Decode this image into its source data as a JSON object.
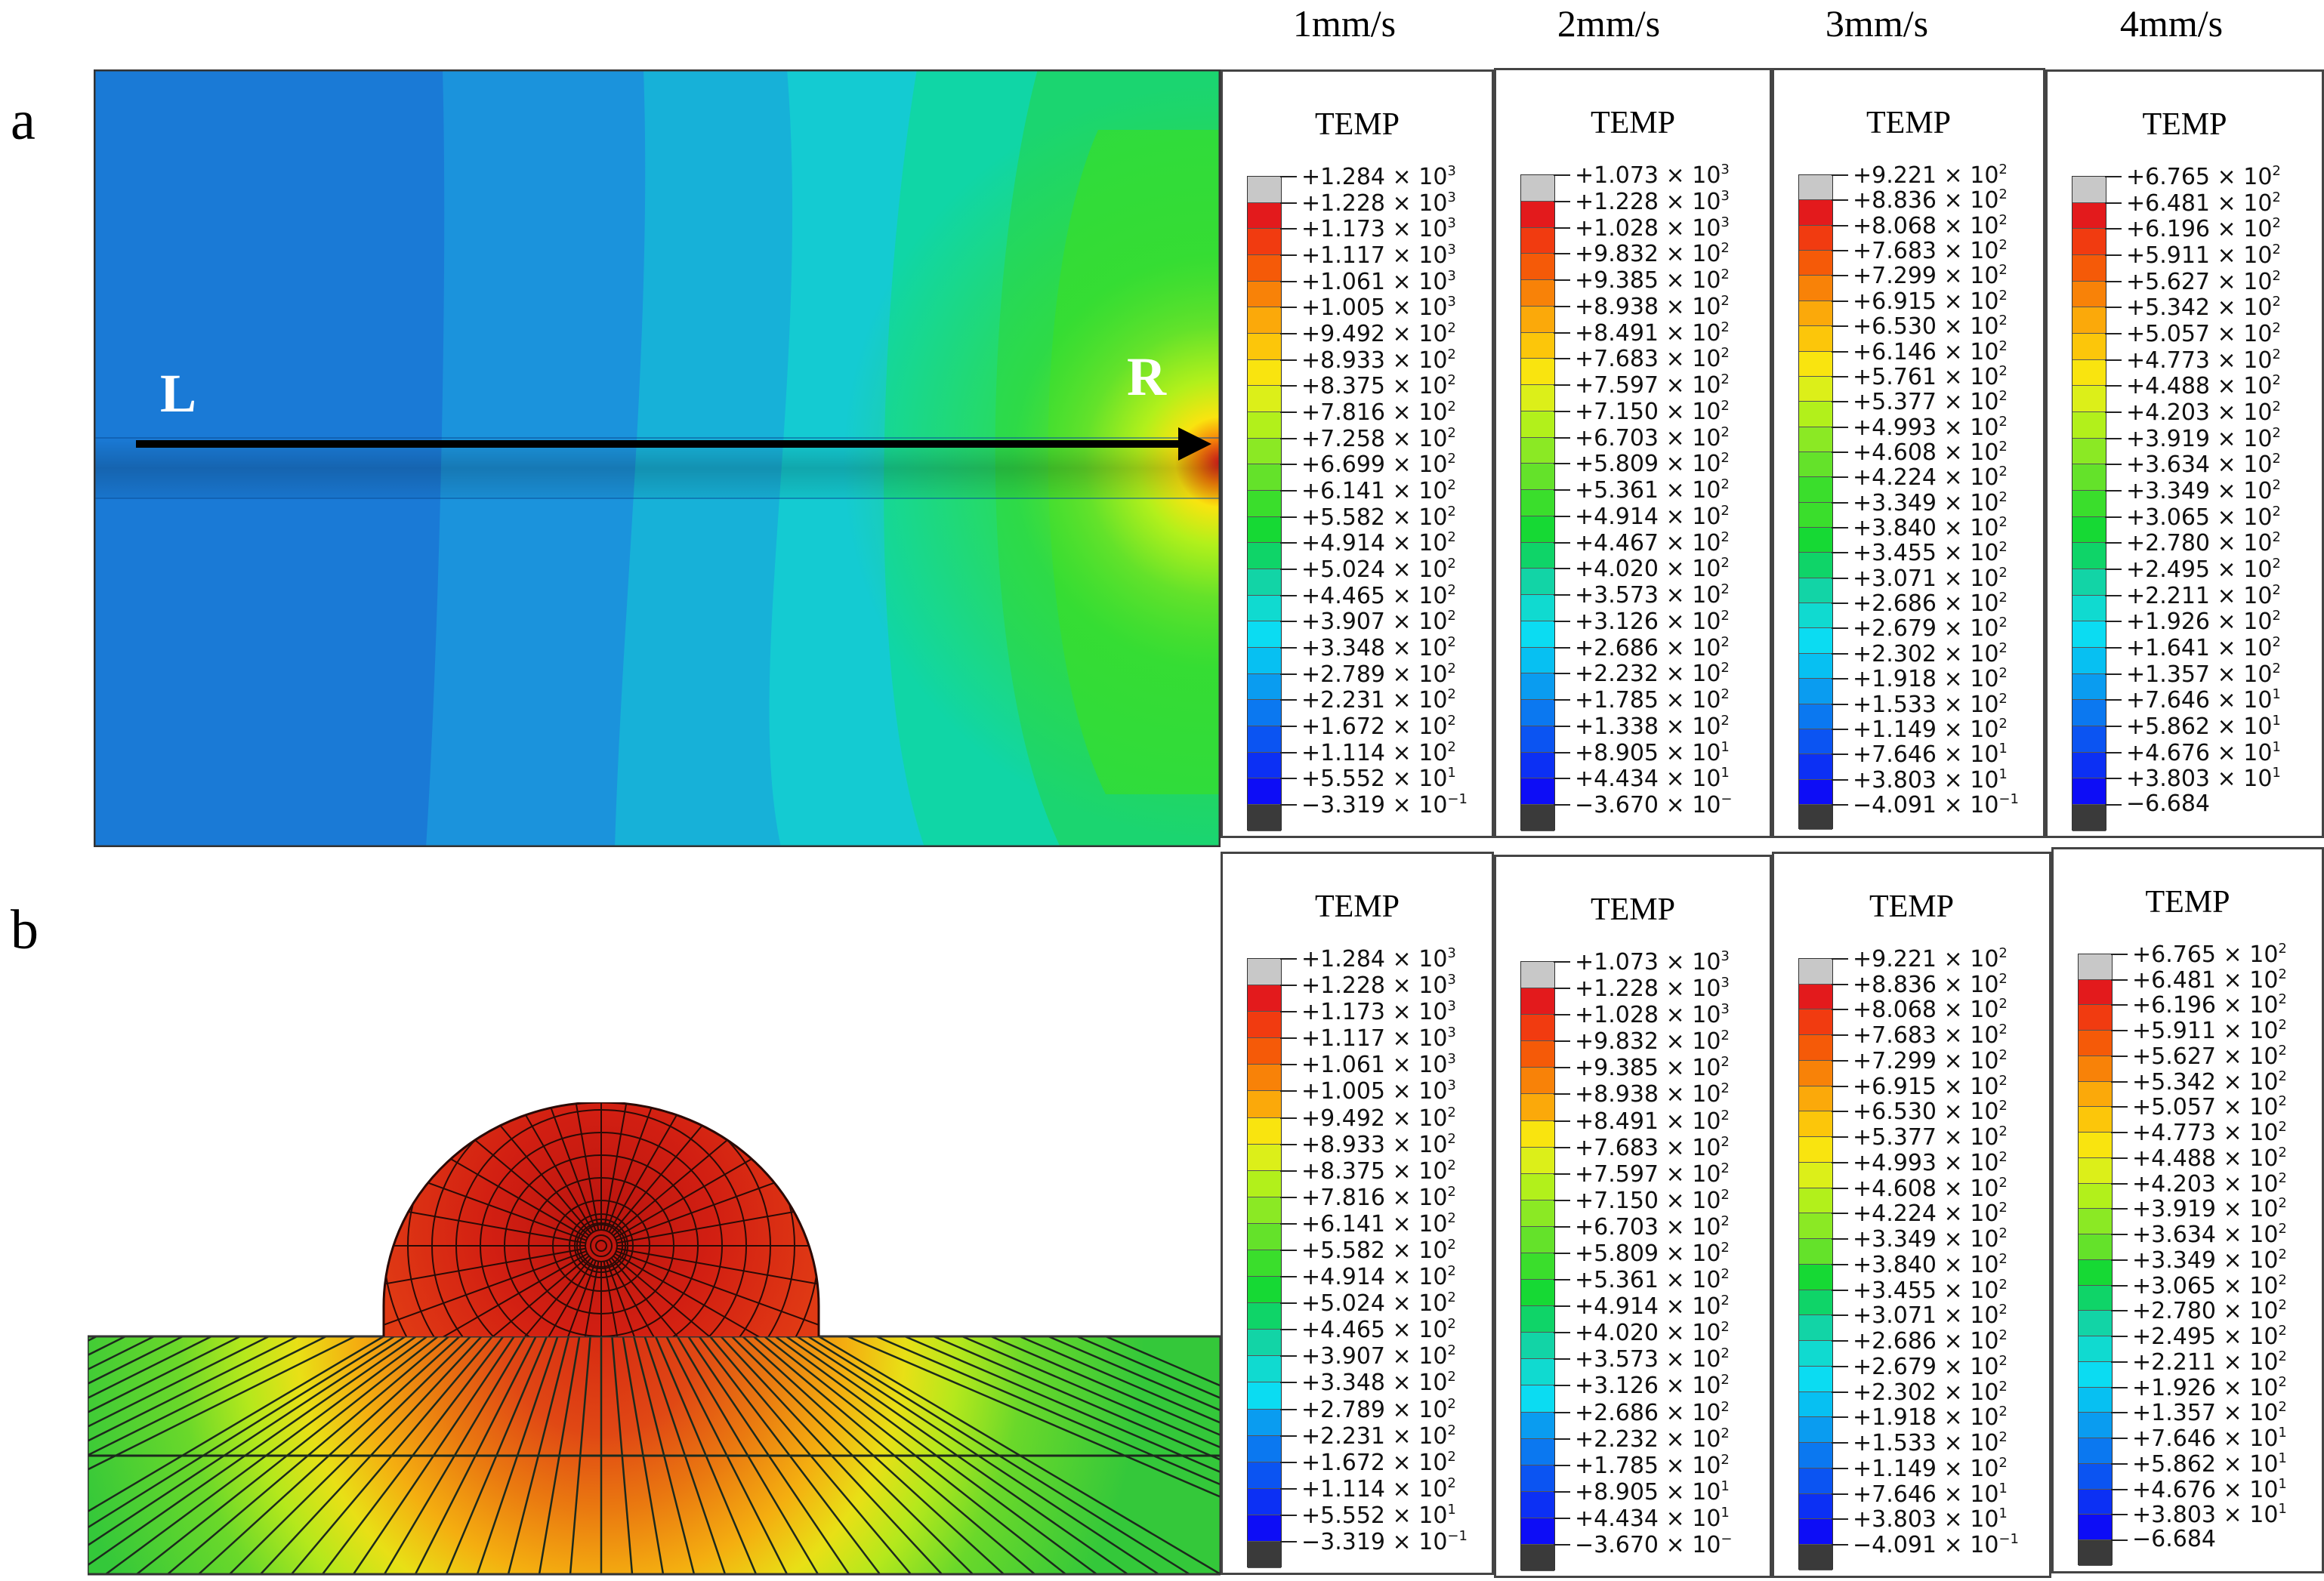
{
  "speeds": [
    "1mm/s",
    "2mm/s",
    "3mm/s",
    "4mm/s"
  ],
  "panels": {
    "a": "a",
    "b": "b"
  },
  "path_labels": {
    "start": "L",
    "end": "R"
  },
  "legend_title": "TEMP",
  "colorbar_colors": [
    "#c8c8c8",
    "#e31a1c",
    "#f13b10",
    "#f55a08",
    "#f88208",
    "#fba90a",
    "#fcc60a",
    "#f9e40f",
    "#dcef19",
    "#b2f01b",
    "#8be924",
    "#64e22a",
    "#3ade2c",
    "#16d934",
    "#0fd468",
    "#12d4a6",
    "#10dad0",
    "#0bdcf2",
    "#07c0f2",
    "#0a9cf0",
    "#0b78f0",
    "#0b54f2",
    "#0c30f4",
    "#0d0df6",
    "#3a3a3a"
  ],
  "legends": {
    "a": [
      [
        "+1.284 × 10",
        "3",
        "+1.228 × 10",
        "3",
        "+1.173 × 10",
        "3",
        "+1.117 × 10",
        "3",
        "+1.061 × 10",
        "3",
        "+1.005 × 10",
        "3",
        "+9.492 × 10",
        "2",
        "+8.933 × 10",
        "2",
        "+8.375 × 10",
        "2",
        "+7.816 × 10",
        "2",
        "+7.258 × 10",
        "2",
        "+6.699 × 10",
        "2",
        "+6.141 × 10",
        "2",
        "+5.582 × 10",
        "2",
        "+4.914 × 10",
        "2",
        "+5.024 × 10",
        "2",
        "+4.465 × 10",
        "2",
        "+3.907 × 10",
        "2",
        "+3.348 × 10",
        "2",
        "+2.789 × 10",
        "2",
        "+2.231 × 10",
        "2",
        "+1.672 × 10",
        "2",
        "+1.114 × 10",
        "2",
        "+5.552 × 10",
        "1",
        "−3.319 × 10",
        "−1"
      ],
      [
        "+1.073 × 10",
        "3",
        "+1.228 × 10",
        "3",
        "+1.028 × 10",
        "3",
        "+9.832 × 10",
        "2",
        "+9.385 × 10",
        "2",
        "+8.938 × 10",
        "2",
        "+8.491 × 10",
        "2",
        "+7.683 × 10",
        "2",
        "+7.597 × 10",
        "2",
        "+7.150 × 10",
        "2",
        "+6.703 × 10",
        "2",
        "+5.809 × 10",
        "2",
        "+5.361 × 10",
        "2",
        "+4.914 × 10",
        "2",
        "+4.467 × 10",
        "2",
        "+4.020 × 10",
        "2",
        "+3.573 × 10",
        "2",
        "+3.126 × 10",
        "2",
        "+2.686 × 10",
        "2",
        "+2.232 × 10",
        "2",
        "+1.785 × 10",
        "2",
        "+1.338 × 10",
        "2",
        "+8.905 × 10",
        "1",
        "+4.434 × 10",
        "1",
        "−3.670 × 10",
        "−"
      ],
      [
        "+9.221 × 10",
        "2",
        "+8.836 × 10",
        "2",
        "+8.068 × 10",
        "2",
        "+7.683 × 10",
        "2",
        "+7.299 × 10",
        "2",
        "+6.915 × 10",
        "2",
        "+6.530 × 10",
        "2",
        "+6.146 × 10",
        "2",
        "+5.761 × 10",
        "2",
        "+5.377 × 10",
        "2",
        "+4.993 × 10",
        "2",
        "+4.608 × 10",
        "2",
        "+4.224 × 10",
        "2",
        "+3.349 × 10",
        "2",
        "+3.840 × 10",
        "2",
        "+3.455 × 10",
        "2",
        "+3.071 × 10",
        "2",
        "+2.686 × 10",
        "2",
        "+2.679 × 10",
        "2",
        "+2.302 × 10",
        "2",
        "+1.918 × 10",
        "2",
        "+1.533 × 10",
        "2",
        "+1.149 × 10",
        "2",
        "+7.646 × 10",
        "1",
        "+3.803 × 10",
        "1",
        "−4.091 × 10",
        "−1"
      ],
      [
        "+6.765 × 10",
        "2",
        "+6.481 × 10",
        "2",
        "+6.196 × 10",
        "2",
        "+5.911 × 10",
        "2",
        "+5.627 × 10",
        "2",
        "+5.342 × 10",
        "2",
        "+5.057 × 10",
        "2",
        "+4.773 × 10",
        "2",
        "+4.488 × 10",
        "2",
        "+4.203 × 10",
        "2",
        "+3.919 × 10",
        "2",
        "+3.634 × 10",
        "2",
        "+3.349 × 10",
        "2",
        "+3.065 × 10",
        "2",
        "+2.780 × 10",
        "2",
        "+2.495 × 10",
        "2",
        "+2.211 × 10",
        "2",
        "+1.926 × 10",
        "2",
        "+1.641 × 10",
        "2",
        "+1.357 × 10",
        "2",
        "+7.646 × 10",
        "1",
        "+5.862 × 10",
        "1",
        "+4.676 × 10",
        "1",
        "+3.803 × 10",
        "1",
        "−6.684",
        ""
      ]
    ],
    "b": [
      [
        "+1.284 × 10",
        "3",
        "+1.228 × 10",
        "3",
        "+1.173 × 10",
        "3",
        "+1.117 × 10",
        "3",
        "+1.061 × 10",
        "3",
        "+1.005 × 10",
        "3",
        "+9.492 × 10",
        "2",
        "+8.933 × 10",
        "2",
        "+8.375 × 10",
        "2",
        "+7.816 × 10",
        "2",
        "+6.141 × 10",
        "2",
        "+5.582 × 10",
        "2",
        "+4.914 × 10",
        "2",
        "+5.024 × 10",
        "2",
        "+4.465 × 10",
        "2",
        "+3.907 × 10",
        "2",
        "+3.348 × 10",
        "2",
        "+2.789 × 10",
        "2",
        "+2.231 × 10",
        "2",
        "+1.672 × 10",
        "2",
        "+1.114 × 10",
        "2",
        "+5.552 × 10",
        "1",
        "−3.319 × 10",
        "−1"
      ],
      [
        "+1.073 × 10",
        "3",
        "+1.228 × 10",
        "3",
        "+1.028 × 10",
        "3",
        "+9.832 × 10",
        "2",
        "+9.385 × 10",
        "2",
        "+8.938 × 10",
        "2",
        "+8.491 × 10",
        "2",
        "+7.683 × 10",
        "2",
        "+7.597 × 10",
        "2",
        "+7.150 × 10",
        "2",
        "+6.703 × 10",
        "2",
        "+5.809 × 10",
        "2",
        "+5.361 × 10",
        "2",
        "+4.914 × 10",
        "2",
        "+4.020 × 10",
        "2",
        "+3.573 × 10",
        "2",
        "+3.126 × 10",
        "2",
        "+2.686 × 10",
        "2",
        "+2.232 × 10",
        "2",
        "+1.785 × 10",
        "2",
        "+8.905 × 10",
        "1",
        "+4.434 × 10",
        "1",
        "−3.670 × 10",
        "−"
      ],
      [
        "+9.221 × 10",
        "2",
        "+8.836 × 10",
        "2",
        "+8.068 × 10",
        "2",
        "+7.683 × 10",
        "2",
        "+7.299 × 10",
        "2",
        "+6.915 × 10",
        "2",
        "+6.530 × 10",
        "2",
        "+5.377 × 10",
        "2",
        "+4.993 × 10",
        "2",
        "+4.608 × 10",
        "2",
        "+4.224 × 10",
        "2",
        "+3.349 × 10",
        "2",
        "+3.840 × 10",
        "2",
        "+3.455 × 10",
        "2",
        "+3.071 × 10",
        "2",
        "+2.686 × 10",
        "2",
        "+2.679 × 10",
        "2",
        "+2.302 × 10",
        "2",
        "+1.918 × 10",
        "2",
        "+1.533 × 10",
        "2",
        "+1.149 × 10",
        "2",
        "+7.646 × 10",
        "1",
        "+3.803 × 10",
        "1",
        "−4.091 × 10",
        "−1"
      ],
      [
        "+6.765 × 10",
        "2",
        "+6.481 × 10",
        "2",
        "+6.196 × 10",
        "2",
        "+5.911 × 10",
        "2",
        "+5.627 × 10",
        "2",
        "+5.342 × 10",
        "2",
        "+5.057 × 10",
        "2",
        "+4.773 × 10",
        "2",
        "+4.488 × 10",
        "2",
        "+4.203 × 10",
        "2",
        "+3.919 × 10",
        "2",
        "+3.634 × 10",
        "2",
        "+3.349 × 10",
        "2",
        "+3.065 × 10",
        "2",
        "+2.780 × 10",
        "2",
        "+2.495 × 10",
        "2",
        "+2.211 × 10",
        "2",
        "+1.926 × 10",
        "2",
        "+1.357 × 10",
        "2",
        "+7.646 × 10",
        "1",
        "+5.862 × 10",
        "1",
        "+4.676 × 10",
        "1",
        "+3.803 × 10",
        "1",
        "−6.684",
        ""
      ]
    ]
  }
}
